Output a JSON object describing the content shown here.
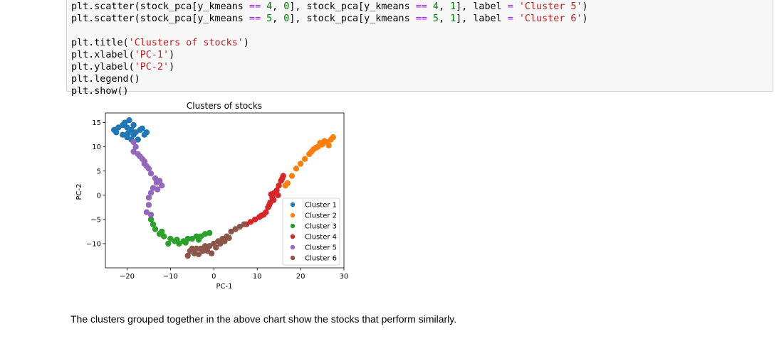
{
  "code_cell": {
    "lines": [
      [
        {
          "t": "plt.scatter(stock_pca[y_kmeans ",
          "c": ""
        },
        {
          "t": "==",
          "c": "op"
        },
        {
          "t": " ",
          "c": ""
        },
        {
          "t": "4",
          "c": "num"
        },
        {
          "t": ", ",
          "c": ""
        },
        {
          "t": "0",
          "c": "num"
        },
        {
          "t": "], stock_pca[y_kmeans ",
          "c": ""
        },
        {
          "t": "==",
          "c": "op"
        },
        {
          "t": " ",
          "c": ""
        },
        {
          "t": "4",
          "c": "num"
        },
        {
          "t": ", ",
          "c": ""
        },
        {
          "t": "1",
          "c": "num"
        },
        {
          "t": "], label ",
          "c": ""
        },
        {
          "t": "=",
          "c": "op"
        },
        {
          "t": " ",
          "c": ""
        },
        {
          "t": "'Cluster 5'",
          "c": "str"
        },
        {
          "t": ")",
          "c": ""
        }
      ],
      [
        {
          "t": "plt.scatter(stock_pca[y_kmeans ",
          "c": ""
        },
        {
          "t": "==",
          "c": "op"
        },
        {
          "t": " ",
          "c": ""
        },
        {
          "t": "5",
          "c": "num"
        },
        {
          "t": ", ",
          "c": ""
        },
        {
          "t": "0",
          "c": "num"
        },
        {
          "t": "], stock_pca[y_kmeans ",
          "c": ""
        },
        {
          "t": "==",
          "c": "op"
        },
        {
          "t": " ",
          "c": ""
        },
        {
          "t": "5",
          "c": "num"
        },
        {
          "t": ", ",
          "c": ""
        },
        {
          "t": "1",
          "c": "num"
        },
        {
          "t": "], label ",
          "c": ""
        },
        {
          "t": "=",
          "c": "op"
        },
        {
          "t": " ",
          "c": ""
        },
        {
          "t": "'Cluster 6'",
          "c": "str"
        },
        {
          "t": ")",
          "c": ""
        }
      ],
      [],
      [
        {
          "t": "plt.title(",
          "c": ""
        },
        {
          "t": "'Clusters of stocks'",
          "c": "str"
        },
        {
          "t": ")",
          "c": ""
        }
      ],
      [
        {
          "t": "plt.xlabel(",
          "c": ""
        },
        {
          "t": "'PC-1'",
          "c": "str"
        },
        {
          "t": ")",
          "c": ""
        }
      ],
      [
        {
          "t": "plt.ylabel(",
          "c": ""
        },
        {
          "t": "'PC-2'",
          "c": "str"
        },
        {
          "t": ")",
          "c": ""
        }
      ],
      [
        {
          "t": "plt.legend()",
          "c": ""
        }
      ],
      [
        {
          "t": "plt.show()",
          "c": ""
        }
      ]
    ]
  },
  "chart_data": {
    "type": "scatter",
    "title": "Clusters of stocks",
    "xlabel": "PC-1",
    "ylabel": "PC-2",
    "xlim": [
      -25,
      30
    ],
    "ylim": [
      -15,
      17
    ],
    "xticks": [
      -20,
      -10,
      0,
      10,
      20,
      30
    ],
    "yticks": [
      15,
      10,
      5,
      0,
      -5,
      -10
    ],
    "xtick_labels": [
      "−20",
      "−10",
      "0",
      "10",
      "20",
      "30"
    ],
    "ytick_labels": [
      "15",
      "10",
      "5",
      "0",
      "−5",
      "−10"
    ],
    "grid": false,
    "legend_position": "lower-right",
    "series": [
      {
        "name": "Cluster 1",
        "color": "#1f77b4",
        "points": [
          [
            -23,
            13.5
          ],
          [
            -22,
            14
          ],
          [
            -21,
            14.5
          ],
          [
            -20.5,
            15
          ],
          [
            -20,
            14
          ],
          [
            -19.5,
            15.5
          ],
          [
            -19,
            13.5
          ],
          [
            -18.5,
            12.5
          ],
          [
            -18,
            13
          ],
          [
            -17,
            13.5
          ],
          [
            -16,
            12.5
          ],
          [
            -15.5,
            13
          ],
          [
            -20,
            12
          ],
          [
            -21,
            12.5
          ],
          [
            -19,
            11.5
          ],
          [
            -17.5,
            11.5
          ],
          [
            -18.5,
            14.5
          ],
          [
            -22.5,
            13
          ],
          [
            -16.5,
            13.8
          ],
          [
            -19.8,
            12.8
          ]
        ]
      },
      {
        "name": "Cluster 2",
        "color": "#ff7f0e",
        "points": [
          [
            16.5,
            2
          ],
          [
            17,
            2.5
          ],
          [
            18,
            4
          ],
          [
            19,
            5.5
          ],
          [
            20,
            6.5
          ],
          [
            21,
            7.5
          ],
          [
            22,
            8.5
          ],
          [
            23,
            9.5
          ],
          [
            24,
            10
          ],
          [
            25,
            10.5
          ],
          [
            26,
            11
          ],
          [
            27,
            11.5
          ],
          [
            27.5,
            12
          ],
          [
            24.5,
            10.8
          ],
          [
            26.5,
            10.3
          ],
          [
            22.5,
            9
          ],
          [
            25.5,
            11.2
          ],
          [
            23.5,
            9.8
          ]
        ]
      },
      {
        "name": "Cluster 3",
        "color": "#2ca02c",
        "points": [
          [
            -14.5,
            -5
          ],
          [
            -14,
            -6
          ],
          [
            -13.5,
            -7
          ],
          [
            -12.5,
            -8
          ],
          [
            -11.5,
            -8.5
          ],
          [
            -10,
            -9
          ],
          [
            -9,
            -9.5
          ],
          [
            -8,
            -10
          ],
          [
            -7,
            -9.5
          ],
          [
            -6,
            -9
          ],
          [
            -5,
            -9
          ],
          [
            -4,
            -8.5
          ],
          [
            -3,
            -8.5
          ],
          [
            -2,
            -8
          ],
          [
            -1,
            -7.8
          ],
          [
            -10.5,
            -10
          ],
          [
            -6.5,
            -9.8
          ],
          [
            -3.5,
            -9.2
          ],
          [
            -8.5,
            -9.2
          ],
          [
            -12,
            -7.5
          ]
        ]
      },
      {
        "name": "Cluster 4",
        "color": "#d62728",
        "points": [
          [
            7.5,
            -6
          ],
          [
            8.5,
            -5.5
          ],
          [
            9.5,
            -5
          ],
          [
            10.5,
            -4.5
          ],
          [
            11.5,
            -4
          ],
          [
            12,
            -3.5
          ],
          [
            12.5,
            -2.5
          ],
          [
            13,
            -1.5
          ],
          [
            13.5,
            -0.5
          ],
          [
            14,
            0.5
          ],
          [
            14.5,
            1
          ],
          [
            15,
            2
          ],
          [
            15.5,
            3
          ],
          [
            16,
            4
          ],
          [
            12.8,
            -2
          ],
          [
            13.8,
            -1
          ],
          [
            14.8,
            0
          ],
          [
            11,
            -4.2
          ],
          [
            15.8,
            3.5
          ],
          [
            13.2,
            0.2
          ]
        ]
      },
      {
        "name": "Cluster 5",
        "color": "#9467bd",
        "points": [
          [
            -18.5,
            11
          ],
          [
            -18,
            10
          ],
          [
            -18.5,
            9
          ],
          [
            -17.5,
            8.5
          ],
          [
            -17,
            8
          ],
          [
            -16.5,
            7.5
          ],
          [
            -16,
            7
          ],
          [
            -15.5,
            6
          ],
          [
            -15,
            5.5
          ],
          [
            -14.5,
            4.5
          ],
          [
            -13.5,
            3.5
          ],
          [
            -12.5,
            3
          ],
          [
            -12,
            2
          ],
          [
            -14,
            1.5
          ],
          [
            -14.5,
            0.5
          ],
          [
            -15,
            -0.5
          ],
          [
            -15,
            -2
          ],
          [
            -15.5,
            -3.5
          ],
          [
            -14.5,
            -4
          ],
          [
            -13,
            1.2
          ],
          [
            -16,
            6.5
          ],
          [
            -13.2,
            2.6
          ]
        ]
      },
      {
        "name": "Cluster 6",
        "color": "#8c564b",
        "points": [
          [
            -6,
            -12.5
          ],
          [
            -5.5,
            -11.5
          ],
          [
            -5,
            -11
          ],
          [
            -4,
            -11
          ],
          [
            -3,
            -11
          ],
          [
            -2,
            -10.5
          ],
          [
            -1,
            -10.5
          ],
          [
            0,
            -10
          ],
          [
            1,
            -9.5
          ],
          [
            2,
            -9
          ],
          [
            3,
            -8.5
          ],
          [
            4,
            -7.5
          ],
          [
            5,
            -7
          ],
          [
            6,
            -6.5
          ],
          [
            7,
            -6
          ],
          [
            -4.5,
            -12
          ],
          [
            -1.5,
            -11.5
          ],
          [
            0.5,
            -10.8
          ],
          [
            1.5,
            -10
          ],
          [
            2.5,
            -9.5
          ],
          [
            3.5,
            -8.8
          ],
          [
            -2.5,
            -11.5
          ],
          [
            -0.5,
            -12
          ],
          [
            -3.5,
            -12.2
          ]
        ]
      }
    ]
  },
  "markdown": {
    "text": "The clusters grouped together in the above chart show the stocks that perform similarly."
  }
}
